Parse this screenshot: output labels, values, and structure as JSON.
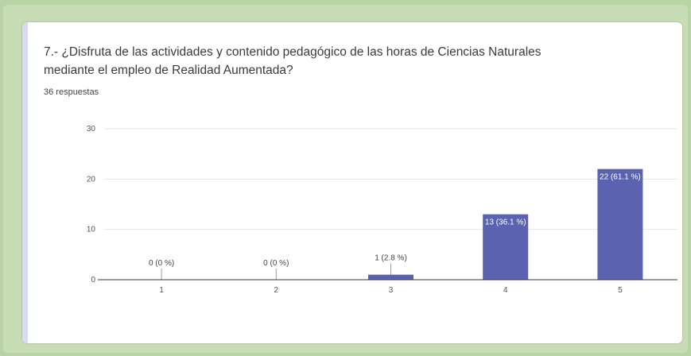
{
  "question": {
    "line1": "7.- ¿Disfruta de las actividades y contenido pedagógico de las horas de Ciencias Naturales",
    "line2": "mediante el empleo de Realidad Aumentada?"
  },
  "responses_label": "36 respuestas",
  "colors": {
    "bar": "#5b63b0",
    "axis": "#333333",
    "grid": "#e6e6e6"
  },
  "chart_data": {
    "type": "bar",
    "categories": [
      "1",
      "2",
      "3",
      "4",
      "5"
    ],
    "values": [
      0,
      0,
      1,
      13,
      22
    ],
    "data_labels": [
      "0 (0 %)",
      "0 (0 %)",
      "1 (2.8 %)",
      "13 (36.1 %)",
      "22 (61.1 %)"
    ],
    "ylim": [
      0,
      30
    ],
    "yticks": [
      0,
      10,
      20,
      30
    ],
    "grid": true,
    "xlabel": "",
    "ylabel": ""
  }
}
